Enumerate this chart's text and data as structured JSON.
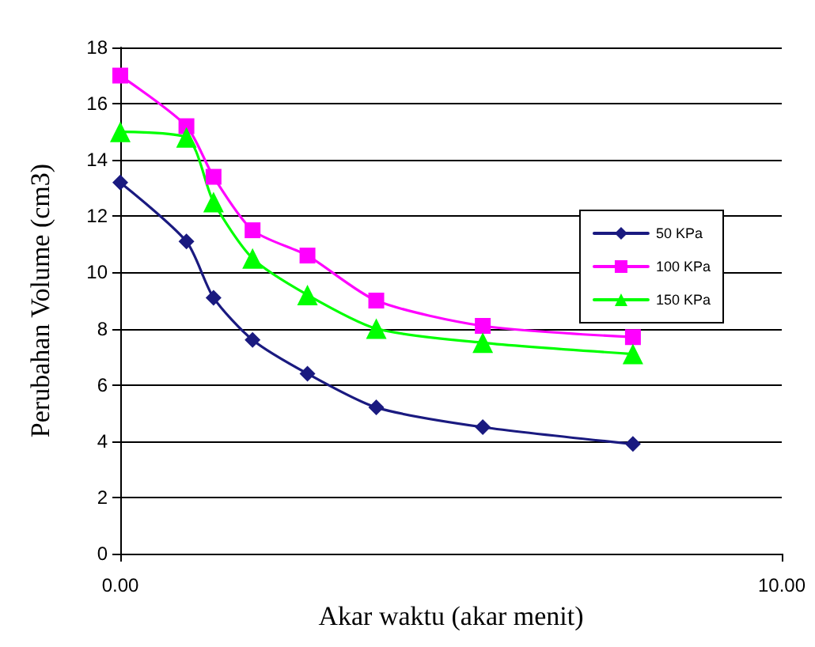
{
  "chart_data": {
    "type": "line",
    "xlabel": "Akar waktu (akar menit)",
    "ylabel": "Perubahan Volume (cm3)",
    "x": [
      0,
      1,
      1.41,
      2,
      2.83,
      3.87,
      5.48,
      7.75
    ],
    "series": [
      {
        "name": "50 KPa",
        "color": "#1a1a80",
        "marker": "diamond",
        "values": [
          13.2,
          11.1,
          9.1,
          7.6,
          6.4,
          5.2,
          4.5,
          3.9
        ]
      },
      {
        "name": "100 KPa",
        "color": "#ff00ff",
        "marker": "square",
        "values": [
          17.0,
          15.2,
          13.4,
          11.5,
          10.6,
          9.0,
          8.1,
          7.7
        ]
      },
      {
        "name": "150 KPa",
        "color": "#00ff00",
        "marker": "triangle",
        "values": [
          15.0,
          14.8,
          12.5,
          10.5,
          9.2,
          8.0,
          7.5,
          7.1
        ]
      }
    ],
    "xlim": [
      0,
      10
    ],
    "xticks": [
      {
        "value": 0,
        "label": "0.00"
      },
      {
        "value": 10,
        "label": "10.00"
      }
    ],
    "ylim": [
      0,
      18
    ],
    "yticks": [
      0,
      2,
      4,
      6,
      8,
      10,
      12,
      14,
      16,
      18
    ],
    "grid": "y",
    "legend": "right"
  }
}
